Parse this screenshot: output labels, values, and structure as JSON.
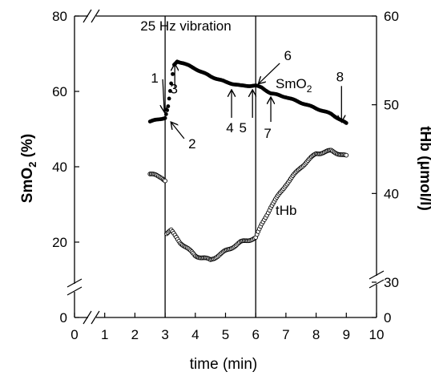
{
  "chart_data": {
    "type": "scatter",
    "title": "",
    "xlabel": "time (min)",
    "ylabel_left": {
      "base": "SmO",
      "sub": "2",
      "rest": " (%)"
    },
    "ylabel_right": "tHb (μmol/l)",
    "xlim": [
      0,
      10
    ],
    "ylim_left": [
      0,
      80
    ],
    "ylim_right": [
      0,
      60
    ],
    "x_ticks": [
      0,
      1,
      2,
      3,
      4,
      5,
      6,
      7,
      8,
      9,
      10
    ],
    "y_left_ticks": [
      0,
      20,
      40,
      60,
      80
    ],
    "y_right_ticks": [
      0,
      30,
      40,
      50,
      60
    ],
    "axis_breaks": {
      "x_after": 0,
      "y_left_below": 20,
      "y_right_below": 30
    },
    "vibration_interval": [
      3,
      6
    ],
    "vibration_label": "25 Hz vibration",
    "series": [
      {
        "name": {
          "base": "SmO",
          "sub": "2"
        },
        "axis": "left",
        "marker": "filled",
        "points": [
          [
            2.5,
            52.0
          ],
          [
            3.0,
            53.0
          ],
          [
            3.1,
            56.0
          ],
          [
            3.2,
            62.0
          ],
          [
            3.3,
            67.0
          ],
          [
            3.4,
            68.0
          ],
          [
            3.6,
            67.5
          ],
          [
            4.0,
            66.0
          ],
          [
            4.5,
            64.0
          ],
          [
            5.0,
            62.5
          ],
          [
            5.5,
            61.5
          ],
          [
            6.0,
            61.5
          ],
          [
            6.2,
            61.0
          ],
          [
            6.5,
            59.5
          ],
          [
            7.0,
            58.5
          ],
          [
            7.5,
            57.0
          ],
          [
            8.0,
            55.5
          ],
          [
            8.5,
            54.0
          ],
          [
            9.0,
            51.5
          ]
        ]
      },
      {
        "name": "tHb",
        "axis": "right",
        "marker": "open",
        "points": [
          [
            2.5,
            42.2
          ],
          [
            2.9,
            41.8
          ],
          [
            3.0,
            41.5
          ],
          [
            3.05,
            35.5
          ],
          [
            3.2,
            35.8
          ],
          [
            3.5,
            34.5
          ],
          [
            4.0,
            33.0
          ],
          [
            4.5,
            32.5
          ],
          [
            5.0,
            33.5
          ],
          [
            5.5,
            34.5
          ],
          [
            6.0,
            35.0
          ],
          [
            6.2,
            36.5
          ],
          [
            6.5,
            38.5
          ],
          [
            7.0,
            41.0
          ],
          [
            7.5,
            43.0
          ],
          [
            8.0,
            44.5
          ],
          [
            8.5,
            44.8
          ],
          [
            9.0,
            44.2
          ]
        ]
      }
    ],
    "annotations": [
      {
        "label": "1",
        "x": 3.0,
        "y": 53.0,
        "dir": "down"
      },
      {
        "label": "2",
        "x": 3.1,
        "y": 53.0,
        "dir": "diag-down"
      },
      {
        "label": "3",
        "x": 3.4,
        "y": 68.0,
        "dir": "up"
      },
      {
        "label": "4",
        "x": 5.2,
        "y": 61.5,
        "dir": "up"
      },
      {
        "label": "5",
        "x": 6.0,
        "y": 61.5,
        "dir": "up"
      },
      {
        "label": "6",
        "x": 6.0,
        "y": 61.5,
        "dir": "diag-up"
      },
      {
        "label": "7",
        "x": 6.5,
        "y": 60.0,
        "dir": "up"
      },
      {
        "label": "8",
        "x": 9.0,
        "y": 51.0,
        "dir": "down"
      }
    ]
  }
}
